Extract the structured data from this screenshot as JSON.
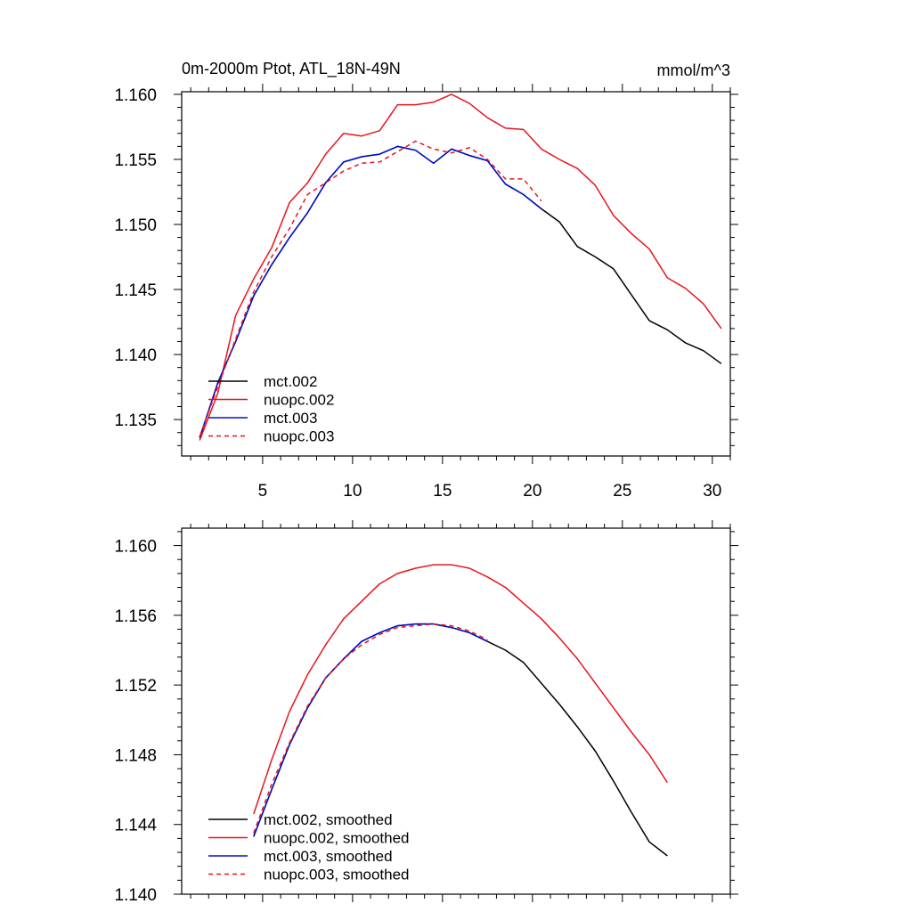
{
  "colors": {
    "mct.002": "#000000",
    "nuopc.002": "#e8141c",
    "mct.003": "#0010d0",
    "nuopc.003": "#e8141c"
  },
  "chart_data": [
    {
      "type": "line",
      "title": "0m-2000m Ptot, ATL_18N-49N",
      "units": "mmol/m^3",
      "xlim": [
        0.5,
        31.0
      ],
      "ylim": [
        1.1322,
        1.1602
      ],
      "xticks": [
        5,
        10,
        15,
        20,
        25,
        30
      ],
      "xtick_labels": [
        "5",
        "10",
        "15",
        "20",
        "25",
        "30"
      ],
      "yticks": [
        1.135,
        1.14,
        1.145,
        1.15,
        1.155,
        1.16
      ],
      "ytick_labels": [
        "1.135",
        "1.140",
        "1.145",
        "1.150",
        "1.155",
        "1.160"
      ],
      "legend_position": "bottom-left",
      "series": [
        {
          "name": "mct.002",
          "dash": "solid",
          "x": [
            1.5,
            2.5,
            3.5,
            4.5,
            5.5,
            6.5,
            7.5,
            8.5,
            9.5,
            10.5,
            11.5,
            12.5,
            13.5,
            14.5,
            15.5,
            16.5,
            17.5,
            18.5,
            19.5,
            20.5,
            21.5,
            22.5,
            23.5,
            24.5,
            25.5,
            26.5,
            27.5,
            28.5,
            29.5,
            30.5
          ],
          "y": [
            1.1336,
            1.1378,
            1.141,
            1.1445,
            1.1469,
            1.149,
            1.1509,
            1.1532,
            1.1548,
            1.1552,
            1.1554,
            1.156,
            1.1557,
            1.1547,
            1.1558,
            1.1553,
            1.1549,
            1.1531,
            1.1523,
            1.1512,
            1.1502,
            1.1483,
            1.1475,
            1.1466,
            1.1446,
            1.1426,
            1.1419,
            1.1409,
            1.1403,
            1.1393
          ]
        },
        {
          "name": "nuopc.002",
          "dash": "solid",
          "x": [
            1.5,
            2.5,
            3.5,
            4.5,
            5.5,
            6.5,
            7.5,
            8.5,
            9.5,
            10.5,
            11.5,
            12.5,
            13.5,
            14.5,
            15.5,
            16.5,
            17.5,
            18.5,
            19.5,
            20.5,
            21.5,
            22.5,
            23.5,
            24.5,
            25.5,
            26.5,
            27.5,
            28.5,
            29.5,
            30.5
          ],
          "y": [
            1.1334,
            1.137,
            1.143,
            1.1458,
            1.1482,
            1.1517,
            1.1532,
            1.1554,
            1.157,
            1.1568,
            1.1572,
            1.1592,
            1.1592,
            1.1594,
            1.16,
            1.1593,
            1.1582,
            1.1574,
            1.1573,
            1.1558,
            1.155,
            1.1543,
            1.153,
            1.1507,
            1.1493,
            1.1481,
            1.1459,
            1.1451,
            1.1439,
            1.142
          ]
        },
        {
          "name": "mct.003",
          "dash": "solid",
          "x": [
            1.5,
            2.5,
            3.5,
            4.5,
            5.5,
            6.5,
            7.5,
            8.5,
            9.5,
            10.5,
            11.5,
            12.5,
            13.5,
            14.5,
            15.5,
            16.5,
            17.5,
            18.5,
            19.5,
            20.5
          ],
          "y": [
            1.1336,
            1.1378,
            1.141,
            1.1445,
            1.1469,
            1.149,
            1.1509,
            1.1532,
            1.1548,
            1.1552,
            1.1554,
            1.156,
            1.1557,
            1.1547,
            1.1558,
            1.1553,
            1.1549,
            1.1531,
            1.1523,
            1.1512
          ]
        },
        {
          "name": "nuopc.003",
          "dash": "dashed",
          "x": [
            1.5,
            2.5,
            3.5,
            4.5,
            5.5,
            6.5,
            7.5,
            8.5,
            9.5,
            10.5,
            11.5,
            12.5,
            13.5,
            14.5,
            15.5,
            16.5,
            17.5,
            18.5,
            19.5,
            20.5
          ],
          "y": [
            1.1337,
            1.1375,
            1.1412,
            1.1448,
            1.1475,
            1.1497,
            1.1523,
            1.1532,
            1.1541,
            1.1547,
            1.1548,
            1.1556,
            1.1564,
            1.1558,
            1.1555,
            1.1559,
            1.155,
            1.1535,
            1.1535,
            1.1518
          ]
        }
      ]
    },
    {
      "type": "line",
      "xlim": [
        0.5,
        31.0
      ],
      "ylim": [
        1.14,
        1.161
      ],
      "xticks": [
        5,
        10,
        15,
        20,
        25,
        30
      ],
      "yticks": [
        1.14,
        1.144,
        1.148,
        1.152,
        1.156,
        1.16
      ],
      "ytick_labels": [
        "1.140",
        "1.144",
        "1.148",
        "1.152",
        "1.156",
        "1.160"
      ],
      "legend_position": "bottom-left",
      "series": [
        {
          "name": "mct.002, smoothed",
          "dash": "solid",
          "x": [
            4.5,
            5.5,
            6.5,
            7.5,
            8.5,
            9.5,
            10.5,
            11.5,
            12.5,
            13.5,
            14.5,
            15.5,
            16.5,
            17.5,
            18.5,
            19.5,
            20.5,
            21.5,
            22.5,
            23.5,
            24.5,
            25.5,
            26.5,
            27.5
          ],
          "y": [
            1.1433,
            1.146,
            1.1486,
            1.1507,
            1.1524,
            1.1535,
            1.1545,
            1.155,
            1.1554,
            1.1555,
            1.1555,
            1.1553,
            1.155,
            1.1545,
            1.154,
            1.1533,
            1.1521,
            1.1509,
            1.1496,
            1.1482,
            1.1465,
            1.1447,
            1.143,
            1.1422
          ]
        },
        {
          "name": "nuopc.002, smoothed",
          "dash": "solid",
          "x": [
            4.5,
            5.5,
            6.5,
            7.5,
            8.5,
            9.5,
            10.5,
            11.5,
            12.5,
            13.5,
            14.5,
            15.5,
            16.5,
            17.5,
            18.5,
            19.5,
            20.5,
            21.5,
            22.5,
            23.5,
            24.5,
            25.5,
            26.5,
            27.5
          ],
          "y": [
            1.1446,
            1.1477,
            1.1505,
            1.1526,
            1.1543,
            1.1558,
            1.1568,
            1.1578,
            1.1584,
            1.1587,
            1.1589,
            1.1589,
            1.1587,
            1.1582,
            1.1576,
            1.1567,
            1.1558,
            1.1547,
            1.1535,
            1.1521,
            1.1507,
            1.1493,
            1.148,
            1.1464
          ]
        },
        {
          "name": "mct.003, smoothed",
          "dash": "solid",
          "x": [
            4.5,
            5.5,
            6.5,
            7.5,
            8.5,
            9.5,
            10.5,
            11.5,
            12.5,
            13.5,
            14.5,
            15.5,
            16.5,
            17.5
          ],
          "y": [
            1.1433,
            1.146,
            1.1486,
            1.1507,
            1.1524,
            1.1535,
            1.1545,
            1.155,
            1.1554,
            1.1555,
            1.1555,
            1.1553,
            1.155,
            1.1545
          ]
        },
        {
          "name": "nuopc.003, smoothed",
          "dash": "dashed",
          "x": [
            4.5,
            5.5,
            6.5,
            7.5,
            8.5,
            9.5,
            10.5,
            11.5,
            12.5,
            13.5,
            14.5,
            15.5,
            16.5,
            17.5
          ],
          "y": [
            1.1435,
            1.1463,
            1.1487,
            1.1508,
            1.1524,
            1.1535,
            1.1543,
            1.1549,
            1.1553,
            1.1554,
            1.1555,
            1.1554,
            1.1551,
            1.1546
          ]
        }
      ]
    }
  ]
}
